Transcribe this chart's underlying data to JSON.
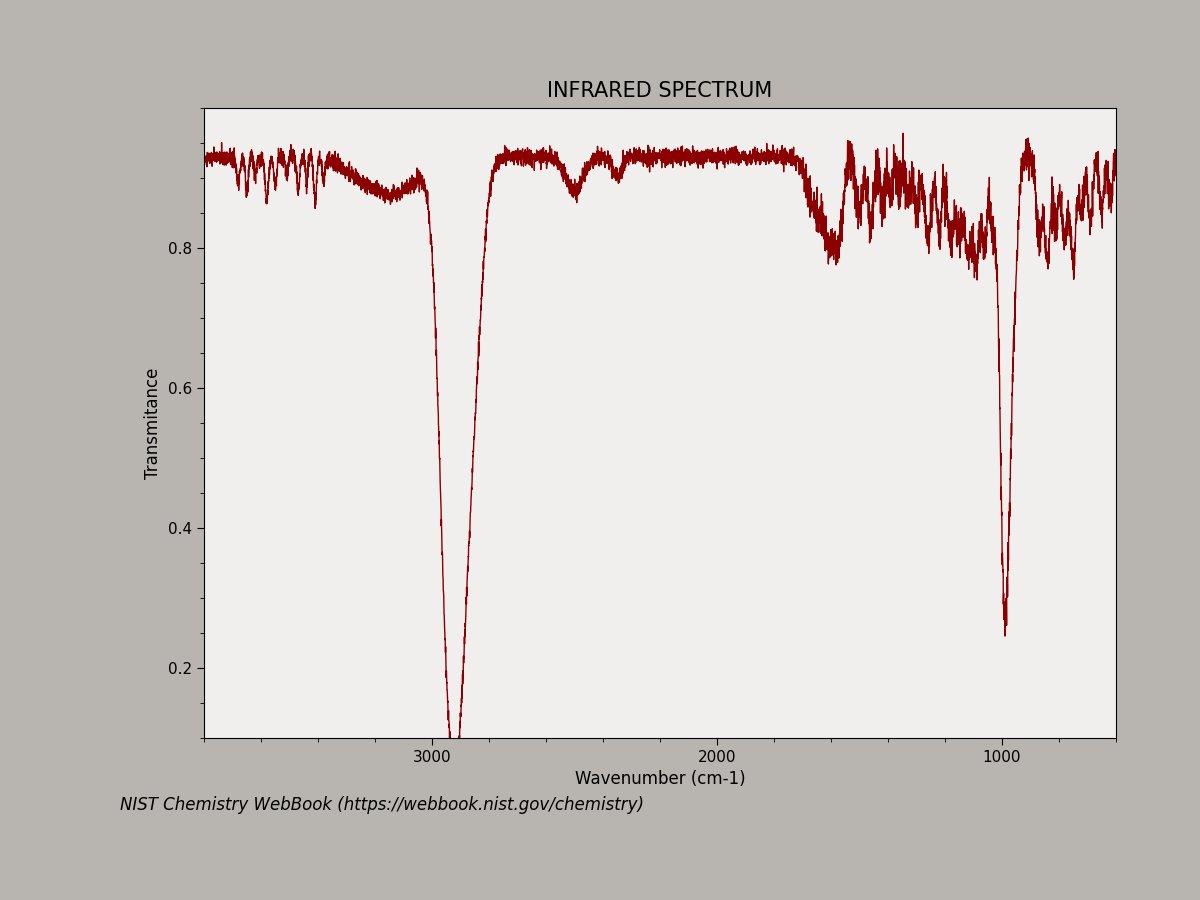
{
  "title": "INFRARED SPECTRUM",
  "xlabel": "Wavenumber (cm-1)",
  "ylabel": "Transmitance",
  "footnote": "NIST Chemistry WebBook (https://webbook.nist.gov/chemistry)",
  "x_min": 3800,
  "x_max": 600,
  "y_min": 0.1,
  "y_max": 1.0,
  "yticks": [
    0.2,
    0.4,
    0.6,
    0.8
  ],
  "xticks": [
    3000,
    2000,
    1000
  ],
  "line_color": "#8B0000",
  "line_width": 1.0,
  "plot_bg": "#f0efee",
  "fig_bg": "#b8b4b0",
  "title_fontsize": 15,
  "label_fontsize": 12,
  "footnote_fontsize": 12,
  "tick_fontsize": 11
}
